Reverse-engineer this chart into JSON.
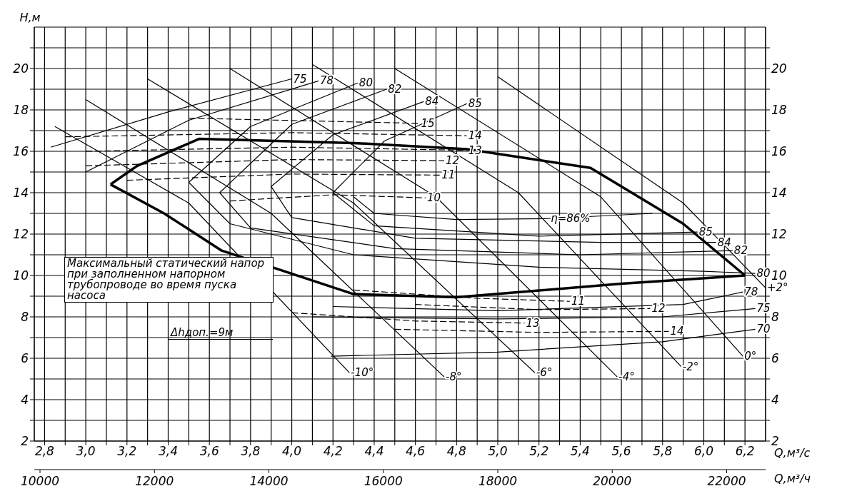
{
  "chart_data": {
    "type": "line",
    "xlabel": "Q,м³/с",
    "x2label": "Q,м³/ч",
    "ylabel": "H,м",
    "xlim": [
      2.75,
      6.3
    ],
    "xticks": [
      {
        "value": 2.8,
        "label": "2,8"
      },
      {
        "value": 2.9,
        "label": null
      },
      {
        "value": 3.0,
        "label": "3,0"
      },
      {
        "value": 3.1,
        "label": null
      },
      {
        "value": 3.2,
        "label": "3,2"
      },
      {
        "value": 3.3,
        "label": null
      },
      {
        "value": 3.4,
        "label": "3,4"
      },
      {
        "value": 3.5,
        "label": null
      },
      {
        "value": 3.6,
        "label": "3,6"
      },
      {
        "value": 3.7,
        "label": null
      },
      {
        "value": 3.8,
        "label": "3,8"
      },
      {
        "value": 3.9,
        "label": null
      },
      {
        "value": 4.0,
        "label": "4,0"
      },
      {
        "value": 4.1,
        "label": null
      },
      {
        "value": 4.2,
        "label": "4,2"
      },
      {
        "value": 4.3,
        "label": null
      },
      {
        "value": 4.4,
        "label": "4,4"
      },
      {
        "value": 4.5,
        "label": null
      },
      {
        "value": 4.6,
        "label": "4,6"
      },
      {
        "value": 4.7,
        "label": null
      },
      {
        "value": 4.8,
        "label": "4,8"
      },
      {
        "value": 4.9,
        "label": null
      },
      {
        "value": 5.0,
        "label": "5,0"
      },
      {
        "value": 5.1,
        "label": null
      },
      {
        "value": 5.2,
        "label": "5,2"
      },
      {
        "value": 5.3,
        "label": null
      },
      {
        "value": 5.4,
        "label": "5,4"
      },
      {
        "value": 5.5,
        "label": null
      },
      {
        "value": 5.6,
        "label": "5,6"
      },
      {
        "value": 5.7,
        "label": null
      },
      {
        "value": 5.8,
        "label": "5,8"
      },
      {
        "value": 5.9,
        "label": null
      },
      {
        "value": 6.0,
        "label": "6,0"
      },
      {
        "value": 6.1,
        "label": null
      },
      {
        "value": 6.2,
        "label": "6,2"
      }
    ],
    "x2lim": [
      9900,
      22680
    ],
    "x2ticks": [
      10000,
      12000,
      14000,
      16000,
      18000,
      20000,
      22000
    ],
    "ylim": [
      2,
      22
    ],
    "yticks": [
      2,
      {
        "value": 3,
        "label": null
      },
      4,
      {
        "value": 5,
        "label": null
      },
      6,
      {
        "value": 7,
        "label": null
      },
      8,
      {
        "value": 9,
        "label": null
      },
      10,
      {
        "value": 11,
        "label": null
      },
      12,
      {
        "value": 13,
        "label": null
      },
      14,
      {
        "value": 15,
        "label": null
      },
      16,
      {
        "value": 17,
        "label": null
      },
      18,
      {
        "value": 19,
        "label": null
      },
      20,
      {
        "value": 21,
        "label": null
      }
    ],
    "y2lim": [
      2,
      22
    ],
    "y2ticks": [
      2,
      {
        "value": 3,
        "label": null
      },
      4,
      {
        "value": 5,
        "label": null
      },
      6,
      {
        "value": 7,
        "label": null
      },
      8,
      {
        "value": 9,
        "label": null
      },
      10,
      {
        "value": 11,
        "label": null
      },
      12,
      {
        "value": 13,
        "label": null
      },
      14,
      {
        "value": 15,
        "label": null
      },
      16,
      {
        "value": 17,
        "label": null
      },
      18,
      {
        "value": 19,
        "label": null
      },
      20,
      {
        "value": 21,
        "label": null
      }
    ],
    "grid": true,
    "series": [
      {
        "color": "#000000",
        "x": [
          3.12,
          3.25,
          3.55,
          4.3,
          4.85,
          5.45,
          5.9,
          6.2
        ],
        "values": [
          14.4,
          15.3,
          16.6,
          16.4,
          16.1,
          15.2,
          12.5,
          10.0
        ]
      },
      {
        "color": "#000000",
        "x": [
          3.12,
          3.38,
          3.66,
          4.3,
          4.8,
          5.6,
          6.2
        ],
        "values": [
          14.4,
          13.0,
          11.2,
          9.1,
          8.95,
          9.6,
          10.0
        ]
      },
      {
        "name": "-10°",
        "color": "#000000",
        "x": [
          2.85,
          3.5,
          4.28
        ],
        "values": [
          17.2,
          13.5,
          5.3
        ]
      },
      {
        "name": "-8°",
        "color": "#000000",
        "x": [
          3.0,
          3.9,
          4.74
        ],
        "values": [
          18.5,
          13.0,
          5.1
        ]
      },
      {
        "name": "-6°",
        "color": "#000000",
        "x": [
          3.3,
          4.3,
          5.18
        ],
        "values": [
          19.5,
          13.5,
          5.3
        ]
      },
      {
        "name": "-4°",
        "color": "#000000",
        "x": [
          3.7,
          4.7,
          5.58
        ],
        "values": [
          20.0,
          13.8,
          5.1
        ]
      },
      {
        "name": "-2°",
        "color": "#000000",
        "x": [
          4.1,
          5.1,
          5.89
        ],
        "values": [
          20.2,
          14.0,
          5.6
        ]
      },
      {
        "name": "0°",
        "color": "#000000",
        "x": [
          4.5,
          5.5,
          6.19
        ],
        "values": [
          20.0,
          13.8,
          6.1
        ]
      },
      {
        "name": "+2°",
        "color": "#000000",
        "x": [
          5.0,
          5.9,
          6.3
        ],
        "values": [
          19.6,
          13.5,
          9.4
        ]
      },
      {
        "name": "75",
        "color": "#000000",
        "x": [
          2.83,
          3.4,
          4.0
        ],
        "values": [
          16.2,
          17.9,
          19.5
        ]
      },
      {
        "color": "#000000",
        "x": [
          4.1,
          5.0,
          5.8,
          6.25
        ],
        "values": [
          8.0,
          7.9,
          8.0,
          8.4
        ]
      },
      {
        "name": "78",
        "color": "#000000",
        "x": [
          3.0,
          3.5,
          4.13
        ],
        "values": [
          15.0,
          17.5,
          19.4
        ]
      },
      {
        "color": "#000000",
        "x": [
          4.2,
          5.0,
          5.9,
          6.19
        ],
        "values": [
          8.5,
          8.3,
          8.6,
          9.2
        ]
      },
      {
        "name": "80",
        "color": "#000000",
        "x": [
          3.5,
          3.8,
          4.32
        ],
        "values": [
          14.5,
          17.2,
          19.3
        ]
      },
      {
        "color": "#000000",
        "x": [
          3.5,
          3.7,
          4.3,
          5.2,
          6.0,
          6.25
        ],
        "values": [
          14.5,
          12.5,
          11.0,
          10.4,
          10.2,
          10.1
        ]
      },
      {
        "name": "82",
        "color": "#000000",
        "x": [
          3.65,
          4.0,
          4.46
        ],
        "values": [
          14.0,
          17.3,
          19.0
        ]
      },
      {
        "color": "#000000",
        "x": [
          3.65,
          3.8,
          4.5,
          5.4,
          6.14
        ],
        "values": [
          14.0,
          12.3,
          11.3,
          11.0,
          11.2
        ]
      },
      {
        "name": "84",
        "color": "#000000",
        "x": [
          3.9,
          4.2,
          4.64
        ],
        "values": [
          14.3,
          16.8,
          18.4
        ]
      },
      {
        "color": "#000000",
        "x": [
          3.9,
          4.0,
          4.6,
          5.5,
          6.06
        ],
        "values": [
          14.3,
          12.8,
          11.8,
          11.6,
          11.6
        ]
      },
      {
        "name": "85",
        "color": "#000000",
        "x": [
          4.2,
          4.45,
          4.85
        ],
        "values": [
          14.0,
          16.5,
          18.3
        ]
      },
      {
        "color": "#000000",
        "x": [
          4.2,
          4.4,
          5.2,
          5.97
        ],
        "values": [
          14.0,
          12.4,
          11.9,
          12.1
        ]
      },
      {
        "color": "#000000",
        "x": [
          4.3,
          4.4,
          4.8,
          5.25,
          5.75
        ],
        "values": [
          13.8,
          13.0,
          12.7,
          12.75,
          13.0
        ]
      },
      {
        "name": "70",
        "color": "#000000",
        "x": [
          4.19,
          5.0,
          5.8,
          6.25
        ],
        "values": [
          6.1,
          6.3,
          6.8,
          7.4
        ]
      },
      {
        "name": "15",
        "color": "#000000",
        "line_style": "dashed",
        "x": [
          3.5,
          4.62
        ],
        "values": [
          17.6,
          17.35
        ]
      },
      {
        "name": "14",
        "color": "#000000",
        "line_style": "dashed",
        "x": [
          2.9,
          4.0,
          4.85
        ],
        "values": [
          16.7,
          16.9,
          16.75
        ]
      },
      {
        "name": "13",
        "color": "#000000",
        "line_style": "dashed",
        "x": [
          3.0,
          4.0,
          4.85
        ],
        "values": [
          16.0,
          16.2,
          16.05
        ]
      },
      {
        "name": "12",
        "color": "#000000",
        "line_style": "dashed",
        "x": [
          3.0,
          4.0,
          4.74
        ],
        "values": [
          15.3,
          15.6,
          15.55
        ]
      },
      {
        "name": "11",
        "color": "#000000",
        "line_style": "dashed",
        "x": [
          3.2,
          4.0,
          4.72
        ],
        "values": [
          14.6,
          14.9,
          14.85
        ]
      },
      {
        "name": "10",
        "color": "#000000",
        "line_style": "dashed",
        "x": [
          3.7,
          4.2,
          4.65
        ],
        "values": [
          13.6,
          13.9,
          13.75
        ]
      },
      {
        "color": "#000000",
        "line_style": "dashed",
        "x": [
          4.3,
          4.9,
          5.35
        ],
        "values": [
          9.3,
          8.9,
          8.75
        ]
      },
      {
        "color": "#000000",
        "line_style": "dashed",
        "x": [
          4.6,
          5.2,
          5.74
        ],
        "values": [
          8.6,
          8.35,
          8.4
        ]
      },
      {
        "color": "#000000",
        "line_style": "dashed",
        "x": [
          4.0,
          4.6,
          5.13
        ],
        "values": [
          8.2,
          7.8,
          7.7
        ]
      },
      {
        "color": "#000000",
        "line_style": "dashed",
        "x": [
          4.5,
          5.2,
          5.83
        ],
        "values": [
          7.4,
          7.25,
          7.3
        ]
      }
    ],
    "annotations": [
      {
        "text": "75",
        "x": 6.25,
        "y": 8.4
      },
      {
        "text": "78",
        "x": 6.19,
        "y": 9.2
      },
      {
        "text": "80",
        "x": 6.25,
        "y": 10.1
      },
      {
        "text": "82",
        "x": 6.14,
        "y": 11.2
      },
      {
        "text": "84",
        "x": 6.06,
        "y": 11.6
      },
      {
        "text": "85",
        "x": 5.97,
        "y": 12.1
      },
      {
        "text": "11",
        "x": 5.35,
        "y": 8.75
      },
      {
        "text": "12",
        "x": 5.74,
        "y": 8.4
      },
      {
        "text": "13",
        "x": 5.13,
        "y": 7.7
      },
      {
        "text": "14",
        "x": 5.83,
        "y": 7.3
      },
      {
        "text": "η=86%",
        "x": 5.25,
        "y": 12.75
      },
      "Максимальный статический напор при заполненном напорном трубопроводе во время пуска насоса",
      "Δhдоп.=9м"
    ]
  }
}
